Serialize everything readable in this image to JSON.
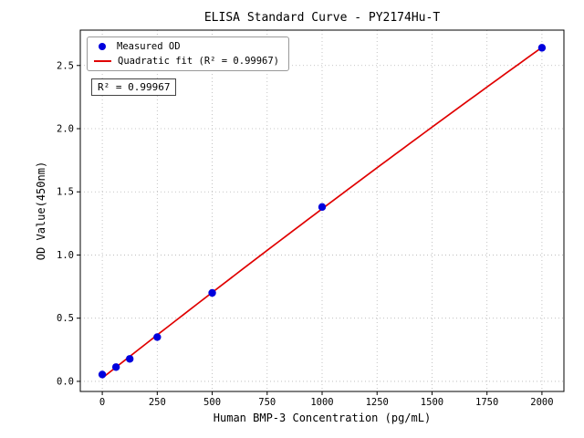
{
  "chart_data": {
    "type": "scatter",
    "title": "ELISA Standard Curve - PY2174Hu-T",
    "xlabel": "Human BMP-3 Concentration (pg/mL)",
    "ylabel": "OD Value(450nm)",
    "xlim": [
      -100,
      2100
    ],
    "ylim": [
      -0.08,
      2.78
    ],
    "xticks": [
      0,
      250,
      500,
      750,
      1000,
      1250,
      1500,
      1750,
      2000
    ],
    "yticks": [
      0.0,
      0.5,
      1.0,
      1.5,
      2.0,
      2.5
    ],
    "grid": true,
    "legend_position": "upper left",
    "series": [
      {
        "name": "Measured OD",
        "type": "scatter",
        "color": "#0000dd",
        "x": [
          0,
          62.5,
          125,
          250,
          500,
          1000,
          2000
        ],
        "y": [
          0.054,
          0.113,
          0.178,
          0.35,
          0.7,
          1.38,
          2.64
        ]
      },
      {
        "name": "Quadratic fit (R² = 0.99967)",
        "type": "line",
        "color": "#e00000",
        "fit": "quadratic"
      }
    ],
    "annotation": "R² = 0.99967",
    "r_squared": 0.99967
  }
}
